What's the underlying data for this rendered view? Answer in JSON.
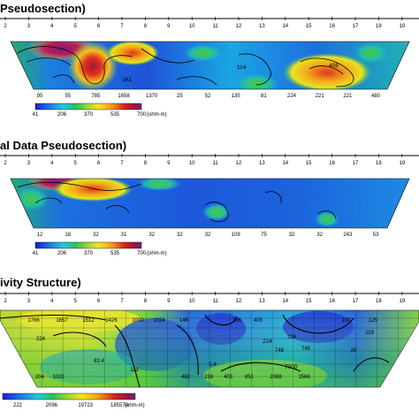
{
  "chart_data": [
    {
      "type": "heatmap",
      "title": "Pseudosection)",
      "electrodes": [
        "2",
        "3",
        "4",
        "5",
        "6",
        "7",
        "8",
        "9",
        "10",
        "11",
        "12",
        "13",
        "14",
        "15",
        "16",
        "17",
        "18",
        "19"
      ],
      "colorbar": {
        "ticks": [
          "41",
          "206",
          "370",
          "535",
          "700"
        ],
        "unit": "(ohm-m)"
      },
      "bottom_values": [
        "95",
        "55",
        "785",
        "1658",
        "1370",
        "25",
        "52",
        "135",
        "81",
        "224",
        "221",
        "221",
        "480"
      ],
      "contour_labels": [
        "114",
        "408",
        "161"
      ]
    },
    {
      "type": "heatmap",
      "title": "al Data Pseudosection)",
      "electrodes": [
        "2",
        "3",
        "4",
        "5",
        "6",
        "7",
        "8",
        "9",
        "10",
        "11",
        "12",
        "13",
        "14",
        "15",
        "16",
        "17",
        "18",
        "19"
      ],
      "colorbar": {
        "ticks": [
          "41",
          "206",
          "370",
          "535",
          "700"
        ],
        "unit": "(ohm-m)"
      },
      "bottom_values": [
        "12",
        "18",
        "32",
        "31",
        "32",
        "32",
        "32",
        "109",
        "75",
        "32",
        "32",
        "243",
        "53"
      ]
    },
    {
      "type": "heatmap",
      "title": "ivity Structure)",
      "electrodes": [
        "2",
        "3",
        "4",
        "5",
        "6",
        "7",
        "8",
        "9",
        "10",
        "11",
        "12",
        "13",
        "14",
        "15",
        "16",
        "17",
        "18",
        "19"
      ],
      "colorbar": {
        "ticks": [
          "222",
          "2096",
          "19723",
          "185570"
        ],
        "unit": "(ohm-m)"
      },
      "cell_values": [
        "1766",
        "1657",
        "1512",
        "1426",
        "1000",
        "1024",
        "224",
        "146",
        "224",
        "83.4",
        "113",
        "186",
        "748",
        "745",
        "405",
        "119",
        "204",
        "1022",
        "2088",
        "1566",
        "851",
        "403",
        "462",
        "238",
        "197",
        "28",
        "125"
      ],
      "contour_labels": [
        "224",
        "7000",
        "2.4"
      ]
    }
  ]
}
